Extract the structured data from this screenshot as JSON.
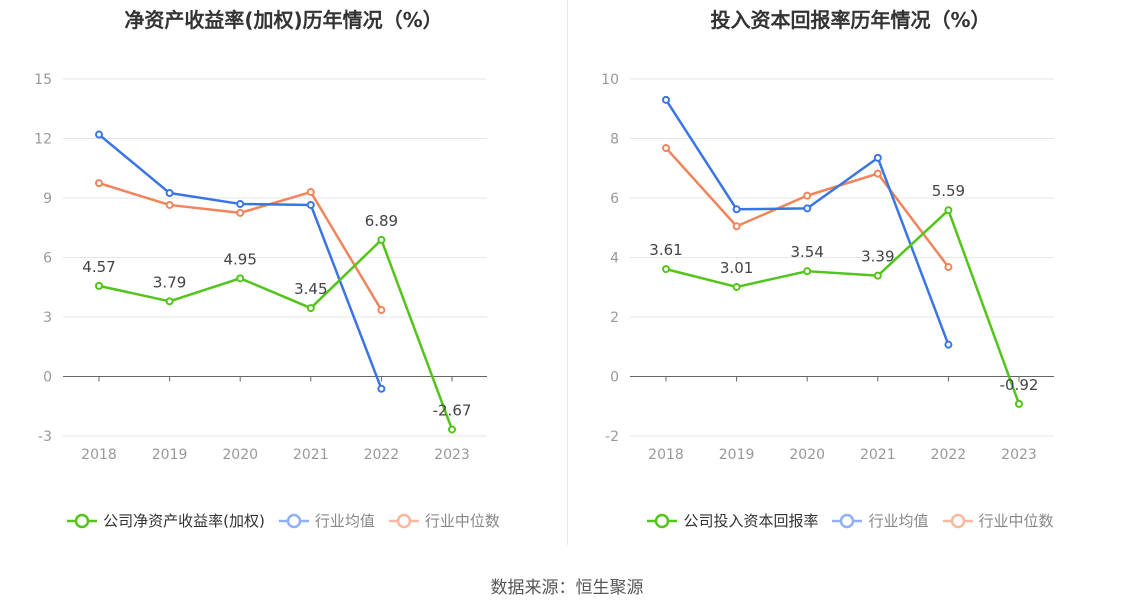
{
  "colors": {
    "company": "#52c41a",
    "industry_avg": "#3a75e6",
    "industry_median": "#f2845c",
    "legend_avg": "#8fb0f5",
    "legend_median": "#f8b89f",
    "axis_text": "#999999",
    "grid": "#e6e6e6",
    "label_text": "#444444"
  },
  "source": "数据来源：恒生聚源",
  "chart_data": [
    {
      "type": "line",
      "title": "净资产收益率(加权)历年情况（%）",
      "categories": [
        "2018",
        "2019",
        "2020",
        "2021",
        "2022",
        "2023"
      ],
      "ylim": [
        -3,
        15
      ],
      "yticks": [
        "-3",
        "0",
        "3",
        "6",
        "9",
        "12",
        "15"
      ],
      "grid": true,
      "legend_position": "bottom",
      "series": [
        {
          "name": "公司净资产收益率(加权)",
          "role": "company",
          "values": [
            4.57,
            3.79,
            4.95,
            3.45,
            6.89,
            -2.67
          ],
          "labels": [
            "4.57",
            "3.79",
            "4.95",
            "3.45",
            "6.89",
            "-2.67"
          ]
        },
        {
          "name": "行业均值",
          "role": "industry_avg",
          "values": [
            12.2,
            9.25,
            8.7,
            8.65,
            -0.62,
            null
          ]
        },
        {
          "name": "行业中位数",
          "role": "industry_median",
          "values": [
            9.75,
            8.65,
            8.25,
            9.3,
            3.35,
            null
          ]
        }
      ]
    },
    {
      "type": "line",
      "title": "投入资本回报率历年情况（%）",
      "categories": [
        "2018",
        "2019",
        "2020",
        "2021",
        "2022",
        "2023"
      ],
      "ylim": [
        -2,
        10
      ],
      "yticks": [
        "-2",
        "0",
        "2",
        "4",
        "6",
        "8",
        "10"
      ],
      "grid": true,
      "legend_position": "bottom",
      "series": [
        {
          "name": "公司投入资本回报率",
          "role": "company",
          "values": [
            3.61,
            3.01,
            3.54,
            3.39,
            5.59,
            -0.92
          ],
          "labels": [
            "3.61",
            "3.01",
            "3.54",
            "3.39",
            "5.59",
            "-0.92"
          ]
        },
        {
          "name": "行业均值",
          "role": "industry_avg",
          "values": [
            9.3,
            5.62,
            5.65,
            7.35,
            1.07,
            null
          ]
        },
        {
          "name": "行业中位数",
          "role": "industry_median",
          "values": [
            7.68,
            5.05,
            6.08,
            6.82,
            3.68,
            null
          ]
        }
      ]
    }
  ]
}
